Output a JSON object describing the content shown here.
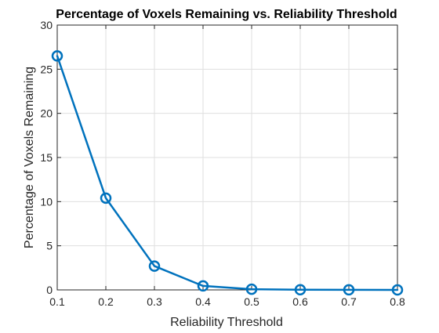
{
  "chart_data": {
    "type": "line",
    "title": "Percentage of Voxels Remaining vs. Reliability Threshold",
    "xlabel": "Reliability Threshold",
    "ylabel": "Percentage of Voxels Remaining",
    "xlim": [
      0.1,
      0.8
    ],
    "ylim": [
      0,
      30
    ],
    "xticks": [
      0.1,
      0.2,
      0.3,
      0.4,
      0.5,
      0.6,
      0.7,
      0.8
    ],
    "xtick_labels": [
      "0.1",
      "0.2",
      "0.3",
      "0.4",
      "0.5",
      "0.6",
      "0.7",
      "0.8"
    ],
    "yticks": [
      0,
      5,
      10,
      15,
      20,
      25,
      30
    ],
    "ytick_labels": [
      "0",
      "5",
      "10",
      "15",
      "20",
      "25",
      "30"
    ],
    "grid": true,
    "series": [
      {
        "marker": "circle",
        "color": "#0072BD",
        "x": [
          0.1,
          0.2,
          0.3,
          0.4,
          0.5,
          0.6,
          0.7,
          0.8
        ],
        "y": [
          26.5,
          10.4,
          2.7,
          0.45,
          0.08,
          0.02,
          0.01,
          0.0
        ]
      }
    ]
  }
}
